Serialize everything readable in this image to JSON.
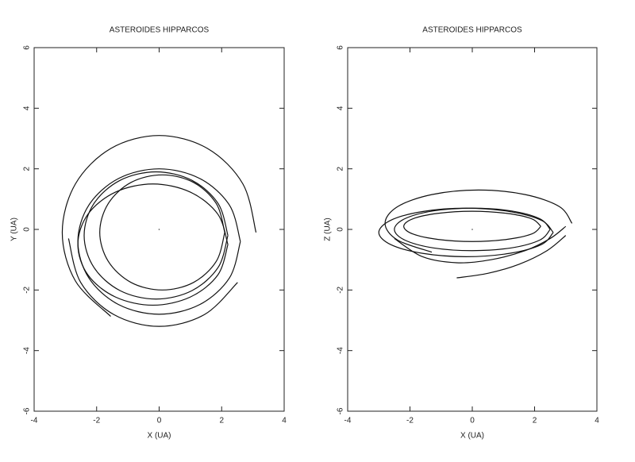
{
  "chart_data": [
    {
      "type": "line",
      "title": "ASTEROIDES HIPPARCOS",
      "x_label": "X (UA)",
      "y_label": "Y (UA)",
      "color": "#111111",
      "xlim": [
        -4,
        4
      ],
      "ylim": [
        -6,
        6
      ],
      "xticks": [
        -4,
        -2,
        0,
        2,
        4
      ],
      "yticks": [
        -6,
        -4,
        -2,
        0,
        2,
        4,
        6
      ],
      "series": [
        {
          "x": [
            2.2,
            1.89,
            1.05,
            -0.1,
            -1.25,
            -2.09,
            -2.4,
            -2.09,
            -1.25,
            -0.1,
            1.05,
            1.89,
            2.2
          ],
          "values": [
            -0.2,
            0.85,
            1.62,
            1.9,
            1.62,
            0.85,
            -0.2,
            -1.25,
            -2.02,
            -2.3,
            -2.02,
            -1.25,
            -0.2
          ]
        },
        {
          "x": [
            2.6,
            2.25,
            1.3,
            0,
            -1.3,
            -2.25,
            -2.6,
            -2.25,
            -1.3,
            0,
            1.3,
            2.25,
            2.6
          ],
          "values": [
            -0.4,
            0.8,
            1.68,
            2.0,
            1.68,
            0.8,
            -0.4,
            -1.6,
            -2.48,
            -2.8,
            -2.48,
            -1.6,
            -0.4
          ]
        },
        {
          "x": [
            2.1,
            1.83,
            1.1,
            0.1,
            -0.9,
            -1.63,
            -1.9,
            -1.63,
            -0.9,
            0.1,
            1.1,
            1.83,
            2.1
          ],
          "values": [
            -0.1,
            0.85,
            1.55,
            1.8,
            1.55,
            0.85,
            -0.1,
            -1.05,
            -1.75,
            -2.0,
            -1.75,
            -1.05,
            -0.1
          ]
        },
        {
          "x": [
            3.1,
            2.68,
            1.55,
            0,
            -1.55,
            -2.68,
            -3.1,
            -2.68,
            -1.55
          ],
          "values": [
            -0.1,
            1.5,
            2.67,
            3.1,
            2.67,
            1.5,
            -0.1,
            -1.7,
            -2.87
          ]
        },
        {
          "x": [
            -2.9,
            -2.51,
            -1.45,
            0,
            1.45,
            2.51
          ],
          "values": [
            -0.3,
            -1.75,
            -2.81,
            -3.2,
            -2.81,
            -1.75
          ]
        },
        {
          "x": [
            2.2,
            1.88,
            1.0,
            -0.2,
            -1.4,
            -2.28,
            -2.6,
            -2.28,
            -1.4,
            -0.2,
            1.0,
            1.88,
            2.2
          ],
          "values": [
            -0.5,
            0.5,
            1.23,
            1.5,
            1.23,
            0.5,
            -0.5,
            -1.5,
            -2.23,
            -2.5,
            -2.23,
            -1.5,
            -0.5
          ]
        }
      ]
    },
    {
      "type": "line",
      "title": "ASTEROIDES HIPPARCOS",
      "x_label": "X (UA)",
      "y_label": "Z (UA)",
      "color": "#111111",
      "xlim": [
        -4,
        4
      ],
      "ylim": [
        -6,
        6
      ],
      "xticks": [
        -4,
        -2,
        0,
        2,
        4
      ],
      "yticks": [
        -6,
        -4,
        -2,
        0,
        2,
        4,
        6
      ],
      "series": [
        {
          "x": [
            2.5,
            2.17,
            1.25,
            0,
            -1.25,
            -2.17,
            -2.5,
            -2.17,
            -1.25,
            0,
            1.25,
            2.17,
            2.5
          ],
          "values": [
            0,
            0.35,
            0.61,
            0.7,
            0.61,
            0.35,
            0,
            -0.35,
            -0.61,
            -0.7,
            -0.61,
            -0.35,
            0
          ]
        },
        {
          "x": [
            3.2,
            2.8,
            1.7,
            0.2,
            -1.3,
            -2.4,
            -2.8,
            -2.4,
            -1.3
          ],
          "values": [
            0.2,
            0.75,
            1.15,
            1.3,
            1.15,
            0.75,
            0.2,
            -0.35,
            -0.75
          ]
        },
        {
          "x": [
            2.6,
            2.22,
            1.2,
            -0.2,
            -1.6,
            -2.62,
            -3.0,
            -2.62,
            -1.6,
            -0.2,
            1.2,
            2.22,
            2.6
          ],
          "values": [
            -0.1,
            0.3,
            0.59,
            0.7,
            0.59,
            0.3,
            -0.1,
            -0.5,
            -0.79,
            -0.9,
            -0.79,
            -0.5,
            -0.1
          ]
        },
        {
          "x": [
            -2.5,
            -1.6,
            -0.5,
            0.6,
            1.7,
            2.5,
            3.0
          ],
          "values": [
            -0.3,
            -0.9,
            -1.1,
            -1.0,
            -0.7,
            -0.3,
            0.1
          ]
        },
        {
          "x": [
            -0.5,
            0.5,
            1.5,
            2.4,
            3.0
          ],
          "values": [
            -1.6,
            -1.45,
            -1.15,
            -0.7,
            -0.2
          ]
        },
        {
          "x": [
            2.2,
            1.91,
            1.1,
            0,
            -1.1,
            -1.91,
            -2.2,
            -1.91,
            -1.1,
            0,
            1.1,
            1.91,
            2.2
          ],
          "values": [
            0.1,
            0.35,
            0.53,
            0.6,
            0.53,
            0.35,
            0.1,
            -0.15,
            -0.33,
            -0.4,
            -0.33,
            -0.15,
            0.1
          ]
        }
      ]
    }
  ]
}
